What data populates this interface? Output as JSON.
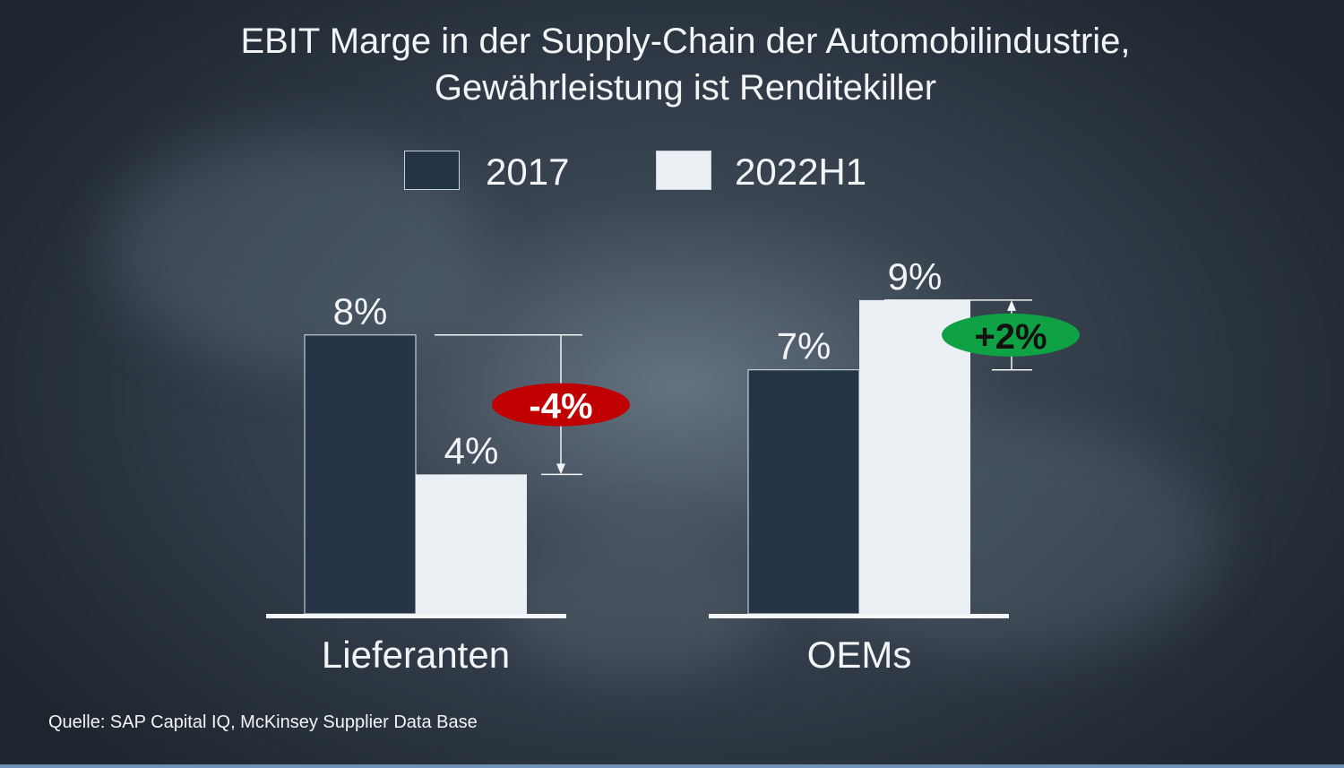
{
  "chart_data": {
    "type": "bar",
    "title": "EBIT Marge in der Supply-Chain der Automobilindustrie,",
    "subtitle": "Gewährleistung ist Renditekiller",
    "categories": [
      "Lieferanten",
      "OEMs"
    ],
    "series": [
      {
        "name": "2017",
        "values": [
          8,
          7
        ],
        "labels": [
          "8%",
          "7%"
        ],
        "color": "#253547"
      },
      {
        "name": "2022H1",
        "values": [
          4,
          9
        ],
        "labels": [
          "4%",
          "9%"
        ],
        "color": "#eaf0f3"
      }
    ],
    "changes": [
      {
        "category": "Lieferanten",
        "label": "-4%",
        "color": "#c00000",
        "text_color": "#ffffff"
      },
      {
        "category": "OEMs",
        "label": "+2%",
        "color": "#0fa244",
        "text_color": "#111111"
      }
    ],
    "legend_position": "top",
    "grid": false,
    "ylim": [
      0,
      9
    ]
  },
  "source": "Quelle: SAP Capital IQ, McKinsey Supplier Data Base"
}
